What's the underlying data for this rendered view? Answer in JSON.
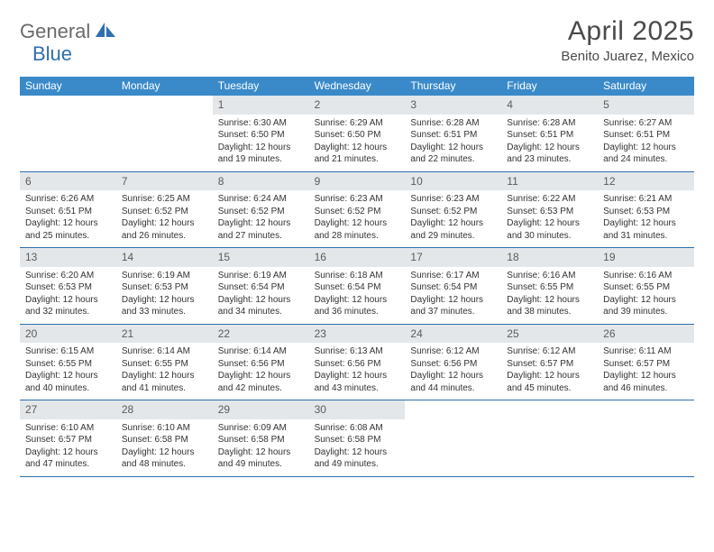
{
  "logo": {
    "part1": "General",
    "part2": "Blue"
  },
  "title": "April 2025",
  "subtitle": "Benito Juarez, Mexico",
  "header_bg": "#3a8ac9",
  "divider_color": "#2f6fb0",
  "daynum_bg": "#e4e7ea",
  "weekdays": [
    "Sunday",
    "Monday",
    "Tuesday",
    "Wednesday",
    "Thursday",
    "Friday",
    "Saturday"
  ],
  "weeks": [
    [
      null,
      null,
      {
        "n": "1",
        "sr": "6:30 AM",
        "ss": "6:50 PM",
        "dl": "12 hours and 19 minutes."
      },
      {
        "n": "2",
        "sr": "6:29 AM",
        "ss": "6:50 PM",
        "dl": "12 hours and 21 minutes."
      },
      {
        "n": "3",
        "sr": "6:28 AM",
        "ss": "6:51 PM",
        "dl": "12 hours and 22 minutes."
      },
      {
        "n": "4",
        "sr": "6:28 AM",
        "ss": "6:51 PM",
        "dl": "12 hours and 23 minutes."
      },
      {
        "n": "5",
        "sr": "6:27 AM",
        "ss": "6:51 PM",
        "dl": "12 hours and 24 minutes."
      }
    ],
    [
      {
        "n": "6",
        "sr": "6:26 AM",
        "ss": "6:51 PM",
        "dl": "12 hours and 25 minutes."
      },
      {
        "n": "7",
        "sr": "6:25 AM",
        "ss": "6:52 PM",
        "dl": "12 hours and 26 minutes."
      },
      {
        "n": "8",
        "sr": "6:24 AM",
        "ss": "6:52 PM",
        "dl": "12 hours and 27 minutes."
      },
      {
        "n": "9",
        "sr": "6:23 AM",
        "ss": "6:52 PM",
        "dl": "12 hours and 28 minutes."
      },
      {
        "n": "10",
        "sr": "6:23 AM",
        "ss": "6:52 PM",
        "dl": "12 hours and 29 minutes."
      },
      {
        "n": "11",
        "sr": "6:22 AM",
        "ss": "6:53 PM",
        "dl": "12 hours and 30 minutes."
      },
      {
        "n": "12",
        "sr": "6:21 AM",
        "ss": "6:53 PM",
        "dl": "12 hours and 31 minutes."
      }
    ],
    [
      {
        "n": "13",
        "sr": "6:20 AM",
        "ss": "6:53 PM",
        "dl": "12 hours and 32 minutes."
      },
      {
        "n": "14",
        "sr": "6:19 AM",
        "ss": "6:53 PM",
        "dl": "12 hours and 33 minutes."
      },
      {
        "n": "15",
        "sr": "6:19 AM",
        "ss": "6:54 PM",
        "dl": "12 hours and 34 minutes."
      },
      {
        "n": "16",
        "sr": "6:18 AM",
        "ss": "6:54 PM",
        "dl": "12 hours and 36 minutes."
      },
      {
        "n": "17",
        "sr": "6:17 AM",
        "ss": "6:54 PM",
        "dl": "12 hours and 37 minutes."
      },
      {
        "n": "18",
        "sr": "6:16 AM",
        "ss": "6:55 PM",
        "dl": "12 hours and 38 minutes."
      },
      {
        "n": "19",
        "sr": "6:16 AM",
        "ss": "6:55 PM",
        "dl": "12 hours and 39 minutes."
      }
    ],
    [
      {
        "n": "20",
        "sr": "6:15 AM",
        "ss": "6:55 PM",
        "dl": "12 hours and 40 minutes."
      },
      {
        "n": "21",
        "sr": "6:14 AM",
        "ss": "6:55 PM",
        "dl": "12 hours and 41 minutes."
      },
      {
        "n": "22",
        "sr": "6:14 AM",
        "ss": "6:56 PM",
        "dl": "12 hours and 42 minutes."
      },
      {
        "n": "23",
        "sr": "6:13 AM",
        "ss": "6:56 PM",
        "dl": "12 hours and 43 minutes."
      },
      {
        "n": "24",
        "sr": "6:12 AM",
        "ss": "6:56 PM",
        "dl": "12 hours and 44 minutes."
      },
      {
        "n": "25",
        "sr": "6:12 AM",
        "ss": "6:57 PM",
        "dl": "12 hours and 45 minutes."
      },
      {
        "n": "26",
        "sr": "6:11 AM",
        "ss": "6:57 PM",
        "dl": "12 hours and 46 minutes."
      }
    ],
    [
      {
        "n": "27",
        "sr": "6:10 AM",
        "ss": "6:57 PM",
        "dl": "12 hours and 47 minutes."
      },
      {
        "n": "28",
        "sr": "6:10 AM",
        "ss": "6:58 PM",
        "dl": "12 hours and 48 minutes."
      },
      {
        "n": "29",
        "sr": "6:09 AM",
        "ss": "6:58 PM",
        "dl": "12 hours and 49 minutes."
      },
      {
        "n": "30",
        "sr": "6:08 AM",
        "ss": "6:58 PM",
        "dl": "12 hours and 49 minutes."
      },
      null,
      null,
      null
    ]
  ],
  "labels": {
    "sunrise": "Sunrise:",
    "sunset": "Sunset:",
    "daylight": "Daylight:"
  }
}
